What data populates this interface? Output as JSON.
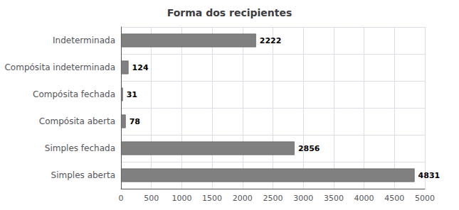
{
  "chart_data": {
    "type": "bar",
    "orientation": "horizontal",
    "title": "Forma dos recipientes",
    "categories": [
      "Simples aberta",
      "Simples fechada",
      "Compósita aberta",
      "Compósita fechada",
      "Compósita indeterminada",
      "Indeterminada"
    ],
    "values": [
      4831,
      2856,
      78,
      31,
      124,
      2222
    ],
    "color": "#808080",
    "xlim": [
      0,
      5000
    ],
    "xticks": [
      0,
      500,
      1000,
      1500,
      2000,
      2500,
      3000,
      3500,
      4000,
      4500,
      5000
    ],
    "grid": true,
    "data_labels": true
  }
}
